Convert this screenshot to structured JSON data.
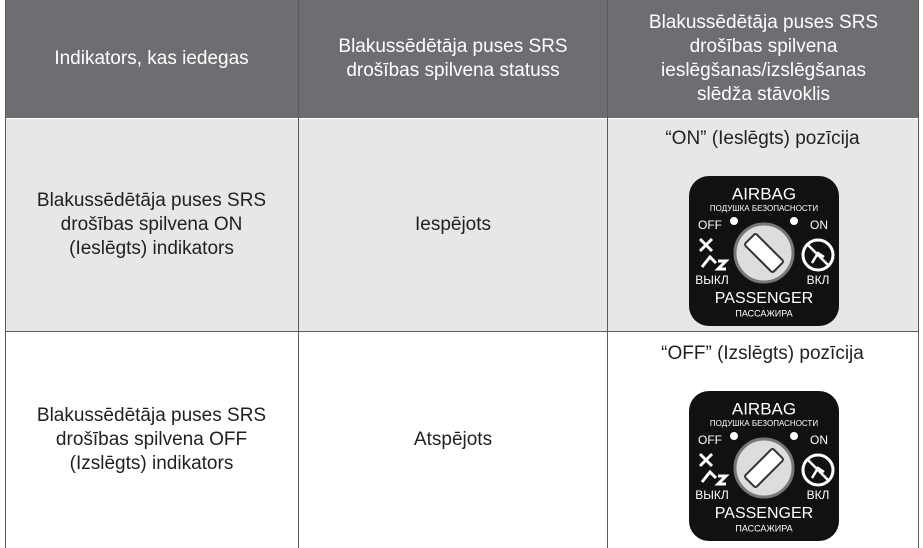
{
  "table": {
    "headers": [
      "Indikators, kas iedegas",
      "Blakussēdētāja puses SRS drošības spilvena statuss",
      "Blakussēdētāja puses SRS drošības spilvena ieslēgšanas/izslēgšanas slēdža stāvoklis"
    ],
    "rows": [
      [
        "Blakussēdētāja puses SRS drošības spilvena ON (Ieslēgts) indikators",
        "Iespējots",
        "“ON” (Ieslēgts) pozīcija"
      ],
      [
        "Blakussēdētāja puses SRS drošības spilvena OFF (Izslēgts) indikators",
        "Atspējots",
        "“OFF” (Izslēgts) pozīcija"
      ]
    ]
  },
  "switch_labels": {
    "title": "AIRBAG",
    "subtitle": "ПОДУШКА БЕЗОПАСНОСТИ",
    "off": "OFF",
    "on": "ON",
    "off_ru": "ВЫКЛ",
    "on_ru": "ВКЛ",
    "passenger": "PASSENGER",
    "passenger_ru": "ПАССАЖИРА"
  }
}
